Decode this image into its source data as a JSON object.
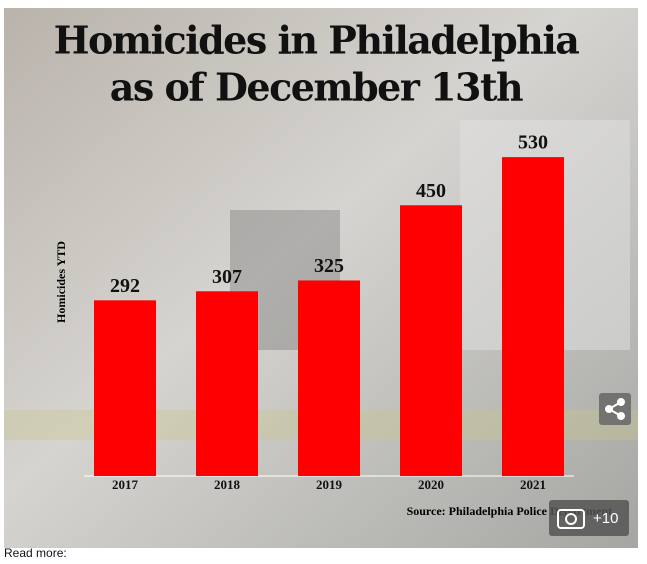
{
  "chart_data": {
    "type": "bar",
    "title": "Homicides in Philadelphia",
    "subtitle": "as of December 13th",
    "y_label": "Homicides YTD",
    "source": "Source: Philadelphia Police Department",
    "categories": [
      "2017",
      "2018",
      "2019",
      "2020",
      "2021"
    ],
    "values": [
      292,
      307,
      325,
      450,
      530
    ],
    "color": "#ff0000",
    "ylim": [
      0,
      600
    ]
  },
  "ui": {
    "photo_count": "+10",
    "read_more": "Read more:"
  }
}
